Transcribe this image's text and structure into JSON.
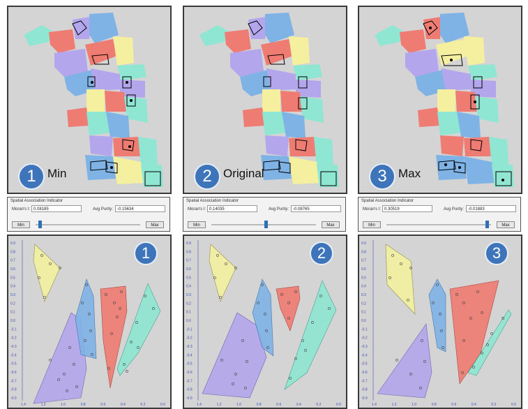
{
  "panels": [
    {
      "number": "1",
      "label": "Min",
      "indicator": {
        "title": "Spatial Association Indicator",
        "morans_label": "Moran's I:",
        "morans_value": "0.08185",
        "purity_label": "Avg Purity:",
        "purity_value": "-0.15634",
        "min_label": "Min",
        "max_label": "Max",
        "slider_position": 0.03
      }
    },
    {
      "number": "2",
      "label": "Original",
      "indicator": {
        "title": "Spatial Association Indicator",
        "morans_label": "Moran's I:",
        "morans_value": "0.14035",
        "purity_label": "Avg Purity:",
        "purity_value": "-0.08765",
        "min_label": "Min",
        "max_label": "Max",
        "slider_position": 0.52
      }
    },
    {
      "number": "3",
      "label": "Max",
      "indicator": {
        "title": "Spatial Association Indicator",
        "morans_label": "Moran's I:",
        "morans_value": "0.30519",
        "purity_label": "Avg Purity:",
        "purity_value": "-0.01883",
        "min_label": "Min",
        "max_label": "Max",
        "slider_position": 0.97
      }
    }
  ],
  "plot_axis": {
    "y_ticks": [
      "0.9",
      "0.8",
      "0.7",
      "0.6",
      "0.5",
      "0.4",
      "0.3",
      "0.2",
      "0.1",
      "0.0",
      "-0.1",
      "-0.2",
      "-0.3",
      "-0.4",
      "-0.5",
      "-0.6",
      "-0.7",
      "-0.8",
      "-0.9"
    ],
    "x_ticks": [
      "1.4",
      "1.2",
      "1.0",
      "0.8",
      "0.6",
      "0.4",
      "0.2",
      "0.0"
    ]
  },
  "colors": {
    "yellow": "#f4f0a0",
    "blue": "#7fb3e6",
    "red": "#ef7c72",
    "teal": "#8fe6d2",
    "purple": "#b4a6ec",
    "badge": "#3d74ba"
  }
}
